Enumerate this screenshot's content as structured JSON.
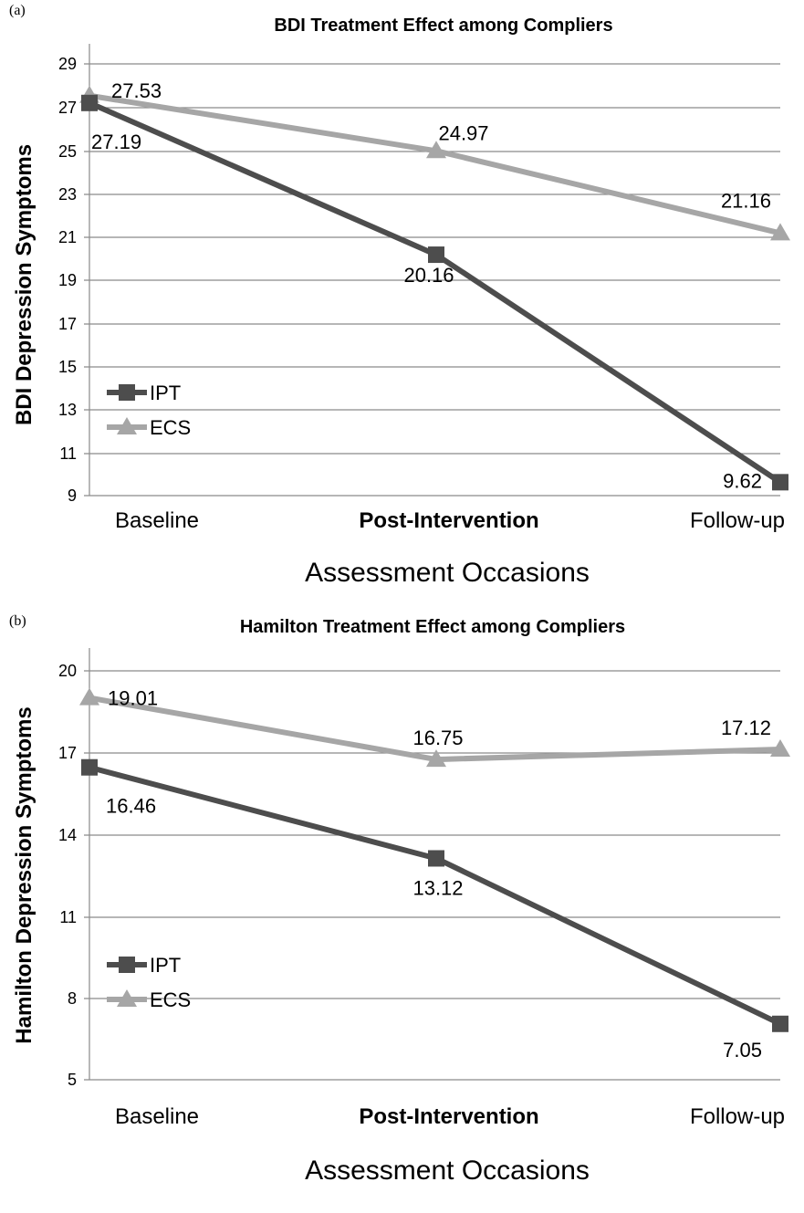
{
  "chart_data": [
    {
      "panel_label": "(a)",
      "type": "line",
      "title": "BDI Treatment Effect among Compliers",
      "xlabel": "Assessment Occasions",
      "ylabel": "BDI Depression Symptoms",
      "categories": [
        "Baseline",
        "Post-Intervention",
        "Follow-up"
      ],
      "yticks": [
        "29",
        "27",
        "25",
        "23",
        "21",
        "19",
        "17",
        "15",
        "13",
        "11",
        "9"
      ],
      "ylim": [
        9,
        30
      ],
      "grid": true,
      "legend_position": "left-middle",
      "series": [
        {
          "name": "IPT",
          "marker": "square",
          "color": "#4d4d4d",
          "values": [
            27.19,
            20.16,
            9.62
          ],
          "labels": [
            "27.19",
            "20.16",
            "9.62"
          ]
        },
        {
          "name": "ECS",
          "marker": "triangle",
          "color": "#a6a6a6",
          "values": [
            27.53,
            24.97,
            21.16
          ],
          "labels": [
            "27.53",
            "24.97",
            "21.16"
          ]
        }
      ]
    },
    {
      "panel_label": "(b)",
      "type": "line",
      "title": "Hamilton Treatment Effect  among Compliers",
      "xlabel": "Assessment Occasions",
      "ylabel": "Hamilton Depression Symptoms",
      "categories": [
        "Baseline",
        "Post-Intervention",
        "Follow-up"
      ],
      "yticks": [
        "20",
        "17",
        "14",
        "11",
        "8",
        "5"
      ],
      "ylim": [
        5,
        20
      ],
      "grid": true,
      "legend_position": "left-middle",
      "series": [
        {
          "name": "IPT",
          "marker": "square",
          "color": "#4d4d4d",
          "values": [
            16.46,
            13.12,
            7.05
          ],
          "labels": [
            "16.46",
            "13.12",
            "7.05"
          ]
        },
        {
          "name": "ECS",
          "marker": "triangle",
          "color": "#a6a6a6",
          "values": [
            19.01,
            16.75,
            17.12
          ],
          "labels": [
            "19.01",
            "16.75",
            "17.12"
          ]
        }
      ]
    }
  ]
}
